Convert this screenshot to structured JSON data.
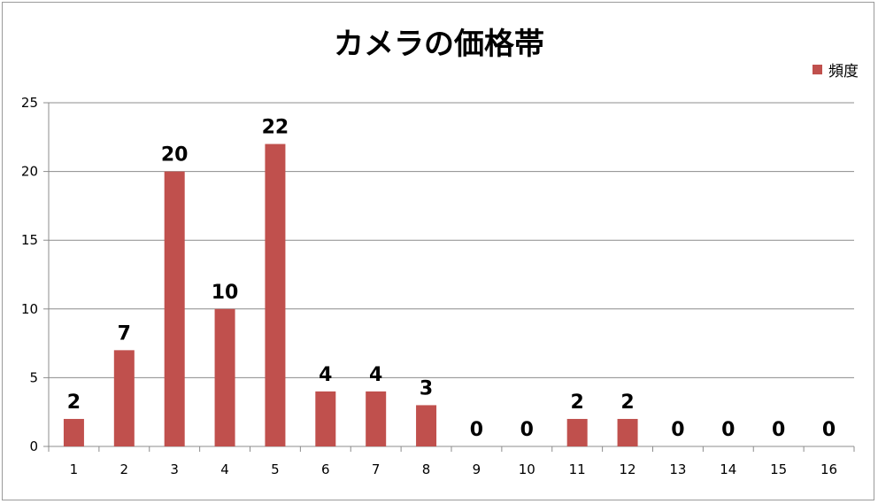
{
  "chart_data": {
    "type": "bar",
    "title": "カメラの価格帯",
    "xlabel": "",
    "ylabel": "",
    "categories": [
      "1",
      "2",
      "3",
      "4",
      "5",
      "6",
      "7",
      "8",
      "9",
      "10",
      "11",
      "12",
      "13",
      "14",
      "15",
      "16"
    ],
    "series": [
      {
        "name": "頻度",
        "color": "#c0504d",
        "values": [
          2,
          7,
          20,
          10,
          22,
          4,
          4,
          3,
          0,
          0,
          2,
          2,
          0,
          0,
          0,
          0
        ]
      }
    ],
    "ylim": [
      0,
      25
    ],
    "yticks": [
      0,
      5,
      10,
      15,
      20,
      25
    ],
    "grid": true,
    "legend_position": "top-right",
    "data_labels": true
  }
}
